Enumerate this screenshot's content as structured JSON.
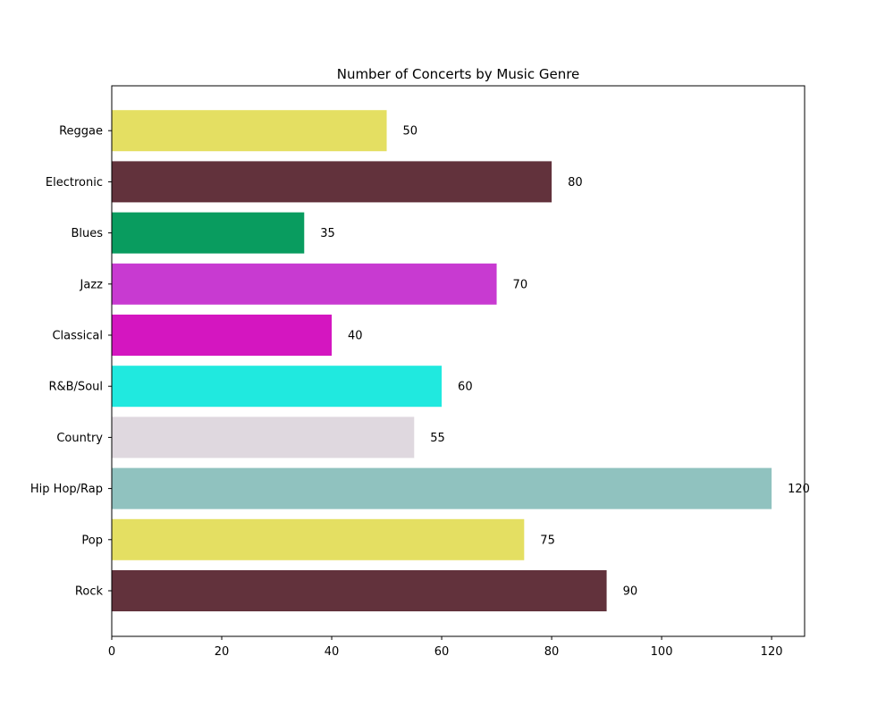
{
  "chart_data": {
    "type": "bar",
    "orientation": "horizontal",
    "title": "Number of Concerts by Music Genre",
    "xlabel": "",
    "ylabel": "",
    "categories": [
      "Rock",
      "Pop",
      "Hip Hop/Rap",
      "Country",
      "R&B/Soul",
      "Classical",
      "Jazz",
      "Blues",
      "Electronic",
      "Reggae"
    ],
    "values": [
      90,
      75,
      120,
      55,
      60,
      40,
      70,
      35,
      80,
      50
    ],
    "colors": [
      "#62323c",
      "#e4df62",
      "#90c2bf",
      "#dfd8df",
      "#20e9df",
      "#d416c0",
      "#c83ad1",
      "#099c5f",
      "#62323c",
      "#e4df62"
    ],
    "xlim": [
      0,
      126
    ],
    "xticks": [
      0,
      20,
      40,
      60,
      80,
      100,
      120
    ],
    "grid": false,
    "legend": "none"
  }
}
